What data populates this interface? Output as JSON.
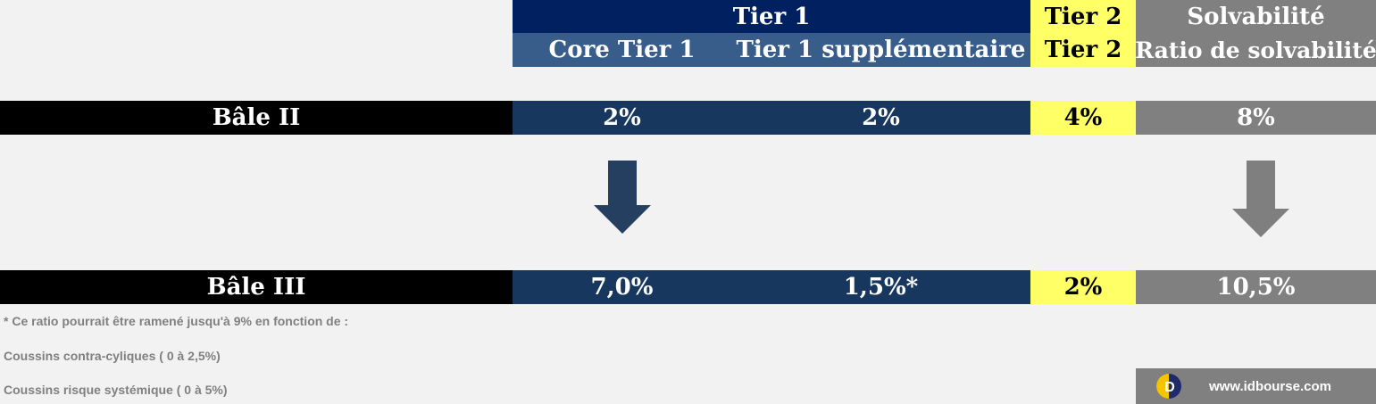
{
  "header": {
    "tier1": "Tier 1",
    "core_tier1": "Core Tier 1",
    "tier1_supp": "Tier 1 supplémentaire",
    "tier2_top": "Tier 2",
    "tier2_bottom": "Tier 2",
    "solvency_top": "Solvabilité",
    "solvency_bottom": "Ratio de solvabilité"
  },
  "rows": {
    "bale2": {
      "label": "Bâle II",
      "core": "2%",
      "supp": "2%",
      "tier2": "4%",
      "solvency": "8%"
    },
    "bale3": {
      "label": "Bâle III",
      "core": "7,0%",
      "supp": "1,5%*",
      "tier2": "2%",
      "solvency": "10,5%"
    }
  },
  "notes": {
    "line1": "* Ce ratio pourrait être ramené jusqu'à 9% en fonction de :",
    "line2": "Coussins contra-cyliques ( 0 à 2,5%)",
    "line3": "Coussins risque systémique ( 0 à 5%)"
  },
  "brand": {
    "url": "www.idbourse.com",
    "logo_letter": "D"
  },
  "colors": {
    "navy": "#002060",
    "steel_blue": "#385d8a",
    "dark_blue": "#17375e",
    "yellow": "#ffff66",
    "gray": "#808080",
    "arrow_blue": "#243f60",
    "arrow_gray": "#7f7f7f"
  },
  "icons": {
    "left_arrow": "down-arrow-icon",
    "right_arrow": "down-arrow-icon"
  }
}
